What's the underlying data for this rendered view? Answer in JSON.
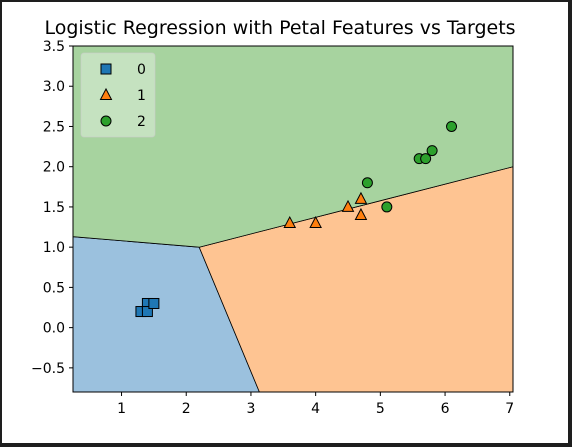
{
  "chart_data": {
    "type": "scatter",
    "title": "Logistic Regression with Petal Features vs Targets",
    "xlabel": "",
    "ylabel": "",
    "xlim": [
      0.25,
      7.05
    ],
    "ylim": [
      -0.8,
      3.5
    ],
    "xticks": [
      1,
      2,
      3,
      4,
      5,
      6,
      7
    ],
    "yticks": [
      -0.5,
      0.0,
      0.5,
      1.0,
      1.5,
      2.0,
      2.5,
      3.0,
      3.5
    ],
    "xtick_labels": [
      "1",
      "2",
      "3",
      "4",
      "5",
      "6",
      "7"
    ],
    "ytick_labels": [
      "−0.5",
      "0.0",
      "0.5",
      "1.0",
      "1.5",
      "2.0",
      "2.5",
      "3.0",
      "3.5"
    ],
    "grid": false,
    "legend_position": "top-left",
    "decision_regions": [
      {
        "class": "0",
        "color": "#9bc1de",
        "polygon": [
          [
            0.25,
            1.13
          ],
          [
            2.2,
            1.0
          ],
          [
            3.13,
            -0.8
          ],
          [
            0.25,
            -0.8
          ]
        ]
      },
      {
        "class": "1",
        "color": "#fec492",
        "polygon": [
          [
            2.2,
            1.0
          ],
          [
            7.05,
            2.0
          ],
          [
            7.05,
            -0.8
          ],
          [
            3.13,
            -0.8
          ]
        ]
      },
      {
        "class": "2",
        "color": "#a7d39f",
        "polygon": [
          [
            0.25,
            3.5
          ],
          [
            7.05,
            3.5
          ],
          [
            7.05,
            2.0
          ],
          [
            2.2,
            1.0
          ],
          [
            0.25,
            1.13
          ]
        ]
      }
    ],
    "series": [
      {
        "name": "0",
        "marker": "square",
        "color": "#1f77b4",
        "x": [
          1.3,
          1.4,
          1.4,
          1.5
        ],
        "y": [
          0.2,
          0.3,
          0.2,
          0.3
        ]
      },
      {
        "name": "1",
        "marker": "triangle",
        "color": "#ff7f0e",
        "x": [
          3.6,
          4.0,
          4.5,
          4.7,
          4.7
        ],
        "y": [
          1.3,
          1.3,
          1.5,
          1.4,
          1.6
        ]
      },
      {
        "name": "2",
        "marker": "circle",
        "color": "#2ca02c",
        "x": [
          4.8,
          5.1,
          5.6,
          5.7,
          5.8,
          6.1
        ],
        "y": [
          1.8,
          1.5,
          2.1,
          2.1,
          2.2,
          2.5
        ]
      }
    ]
  }
}
